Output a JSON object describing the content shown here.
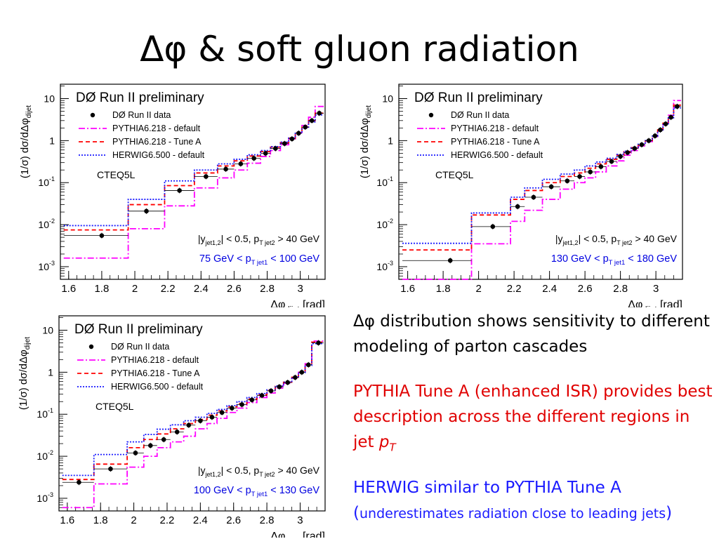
{
  "title": "Δφ & soft gluon radiation",
  "text": {
    "p1_symbol": "Δφ",
    "p1_rest": " distribution shows sensitivity to different modeling of parton cascades",
    "p2_a": "PYTHIA Tune A (enhanced ISR) provides best description across the different regions in jet ",
    "p2_p": "p",
    "p2_sub": "T",
    "p3_a": "HERWIG similar to PYTHIA Tune A",
    "p3_open": "(",
    "p3_b": "underestimates radiation close to leading jets",
    "p3_close": ")"
  },
  "colors": {
    "data": "#000000",
    "pythia_default": "#ff00ff",
    "pythia_tuneA": "#ff0000",
    "herwig": "#1a1aff",
    "cut_text": "#0000e0"
  },
  "chart_data": [
    {
      "type": "scatter",
      "header": "DØ Run II preliminary",
      "ylabel": "(1/σ) dσ/dΔφ",
      "ylabel_sub": "dijet",
      "xlabel": "Δφ",
      "xlabel_sub": "dijet",
      "xlabel_unit": "[rad]",
      "xlim": [
        1.55,
        3.15
      ],
      "ylim": [
        0.0005,
        22
      ],
      "yscale": "log",
      "xticks": [
        "1.6",
        "1.8",
        "2",
        "2.2",
        "2.4",
        "2.6",
        "2.8",
        "3"
      ],
      "yticks": [
        {
          "base": "10",
          "exp": "-3",
          "v": 0.001
        },
        {
          "base": "10",
          "exp": "-2",
          "v": 0.01
        },
        {
          "base": "10",
          "exp": "-1",
          "v": 0.1
        },
        {
          "base": "1",
          "exp": "",
          "v": 1
        },
        {
          "base": "10",
          "exp": "",
          "v": 10
        }
      ],
      "legend_position": "top-left",
      "legend": [
        {
          "label": "DØ  Run II data",
          "style": "marker"
        },
        {
          "label": "PYTHIA6.218 - default",
          "style": "dashdot"
        },
        {
          "label": "PYTHIA6.218 - Tune A",
          "style": "dashed"
        },
        {
          "label": "HERWIG6.500 - default",
          "style": "dotted"
        }
      ],
      "pdf_label": "CTEQ5L",
      "cut1": {
        "a": "|y",
        "a_sub": "jet1,2",
        "b": "| < 0.5, p",
        "b_sub": "T jet2",
        "c": " > 40 GeV"
      },
      "cut2": {
        "a": "75 GeV < p",
        "a_sub": "T jet1",
        "b": " < 100 GeV"
      },
      "bins": [
        1.57,
        1.96,
        2.18,
        2.36,
        2.5,
        2.6,
        2.68,
        2.76,
        2.82,
        2.88,
        2.93,
        2.97,
        3.01,
        3.05,
        3.09,
        3.1416
      ],
      "data": {
        "x": [
          1.8,
          2.07,
          2.27,
          2.43,
          2.55,
          2.64,
          2.72,
          2.79,
          2.85,
          2.905,
          2.95,
          2.99,
          3.03,
          3.07,
          3.115
        ],
        "y": [
          0.0055,
          0.021,
          0.065,
          0.14,
          0.21,
          0.28,
          0.38,
          0.5,
          0.65,
          0.85,
          1.1,
          1.5,
          2.1,
          3.0,
          4.5
        ]
      },
      "series": [
        {
          "key": "pythia_default",
          "values": [
            0.0016,
            0.008,
            0.028,
            0.075,
            0.13,
            0.2,
            0.29,
            0.42,
            0.58,
            0.8,
            1.1,
            1.55,
            2.3,
            3.6,
            6.5
          ]
        },
        {
          "key": "pythia_tuneA",
          "values": [
            0.0075,
            0.03,
            0.085,
            0.17,
            0.25,
            0.33,
            0.43,
            0.55,
            0.7,
            0.9,
            1.15,
            1.55,
            2.1,
            3.0,
            4.5
          ]
        },
        {
          "key": "herwig",
          "values": [
            0.0095,
            0.04,
            0.11,
            0.2,
            0.28,
            0.36,
            0.46,
            0.58,
            0.72,
            0.92,
            1.15,
            1.5,
            2.0,
            2.8,
            4.1
          ]
        }
      ]
    },
    {
      "type": "scatter",
      "header": "DØ Run II preliminary",
      "ylabel": "(1/σ) dσ/dΔφ",
      "ylabel_sub": "dijet",
      "xlabel": "Δφ",
      "xlabel_sub": "dijet",
      "xlabel_unit": "[rad]",
      "xlim": [
        1.55,
        3.15
      ],
      "ylim": [
        0.0005,
        22
      ],
      "yscale": "log",
      "xticks": [
        "1.6",
        "1.8",
        "2",
        "2.2",
        "2.4",
        "2.6",
        "2.8",
        "3"
      ],
      "yticks": [
        {
          "base": "10",
          "exp": "-3",
          "v": 0.001
        },
        {
          "base": "10",
          "exp": "-2",
          "v": 0.01
        },
        {
          "base": "10",
          "exp": "-1",
          "v": 0.1
        },
        {
          "base": "1",
          "exp": "",
          "v": 1
        },
        {
          "base": "10",
          "exp": "",
          "v": 10
        }
      ],
      "legend_position": "top-left",
      "legend": [
        {
          "label": "DØ  Run II data",
          "style": "marker"
        },
        {
          "label": "PYTHIA6.218 - default",
          "style": "dashdot"
        },
        {
          "label": "PYTHIA6.218 - Tune A",
          "style": "dashed"
        },
        {
          "label": "HERWIG6.500 - default",
          "style": "dotted"
        }
      ],
      "pdf_label": "CTEQ5L",
      "cut1": {
        "a": "|y",
        "a_sub": "jet1,2",
        "b": "| < 0.5, p",
        "b_sub": "T jet2",
        "c": " > 40 GeV"
      },
      "cut2": {
        "a": "130 GeV < p",
        "a_sub": "T jet1",
        "b": " < 180 GeV"
      },
      "bins": [
        1.57,
        1.96,
        2.18,
        2.26,
        2.36,
        2.46,
        2.54,
        2.6,
        2.66,
        2.72,
        2.78,
        2.82,
        2.86,
        2.9,
        2.94,
        2.98,
        3.01,
        3.04,
        3.07,
        3.1,
        3.1416
      ],
      "data": {
        "x": [
          1.84,
          2.08,
          2.22,
          2.31,
          2.41,
          2.5,
          2.57,
          2.63,
          2.69,
          2.75,
          2.8,
          2.84,
          2.88,
          2.92,
          2.96,
          2.995,
          3.025,
          3.055,
          3.085,
          3.12
        ],
        "y": [
          0.0014,
          0.009,
          0.027,
          0.045,
          0.08,
          0.11,
          0.14,
          0.18,
          0.24,
          0.32,
          0.42,
          0.52,
          0.65,
          0.8,
          1.0,
          1.3,
          1.8,
          2.5,
          3.6,
          6.5
        ]
      },
      "series": [
        {
          "key": "pythia_default",
          "values": [
            0.0005,
            0.0035,
            0.012,
            0.022,
            0.04,
            0.07,
            0.1,
            0.13,
            0.18,
            0.25,
            0.33,
            0.45,
            0.58,
            0.75,
            0.95,
            1.25,
            1.8,
            2.6,
            4.0,
            9.0
          ]
        },
        {
          "key": "pythia_tuneA",
          "values": [
            0.0025,
            0.017,
            0.04,
            0.065,
            0.1,
            0.14,
            0.17,
            0.22,
            0.28,
            0.36,
            0.45,
            0.55,
            0.68,
            0.82,
            1.0,
            1.3,
            1.8,
            2.6,
            3.8,
            7.0
          ]
        },
        {
          "key": "herwig",
          "values": [
            0.0036,
            0.019,
            0.045,
            0.075,
            0.12,
            0.16,
            0.2,
            0.25,
            0.31,
            0.38,
            0.47,
            0.56,
            0.68,
            0.82,
            1.0,
            1.28,
            1.7,
            2.4,
            3.5,
            6.0
          ]
        }
      ]
    },
    {
      "type": "scatter",
      "header": "DØ Run II preliminary",
      "ylabel": "(1/σ) dσ/dΔφ",
      "ylabel_sub": "dijet",
      "xlabel": "Δφ",
      "xlabel_sub": "dijet",
      "xlabel_unit": "[rad]",
      "xlim": [
        1.55,
        3.15
      ],
      "ylim": [
        0.0005,
        22
      ],
      "yscale": "log",
      "xticks": [
        "1.6",
        "1.8",
        "2",
        "2.2",
        "2.4",
        "2.6",
        "2.8",
        "3"
      ],
      "yticks": [
        {
          "base": "10",
          "exp": "-3",
          "v": 0.001
        },
        {
          "base": "10",
          "exp": "-2",
          "v": 0.01
        },
        {
          "base": "10",
          "exp": "-1",
          "v": 0.1
        },
        {
          "base": "1",
          "exp": "",
          "v": 1
        },
        {
          "base": "10",
          "exp": "",
          "v": 10
        }
      ],
      "legend_position": "top-left",
      "legend": [
        {
          "label": "DØ  Run II data",
          "style": "marker"
        },
        {
          "label": "PYTHIA6.218 - default",
          "style": "dashdot"
        },
        {
          "label": "PYTHIA6.218 - Tune A",
          "style": "dashed"
        },
        {
          "label": "HERWIG6.500 - default",
          "style": "dotted"
        }
      ],
      "pdf_label": "CTEQ5L",
      "cut1": {
        "a": "|y",
        "a_sub": "jet1,2",
        "b": "| < 0.5, p",
        "b_sub": "T jet2",
        "c": " > 40 GeV"
      },
      "cut2": {
        "a": "100 GeV < p",
        "a_sub": "T jet1",
        "b": " < 130 GeV"
      },
      "bins": [
        1.57,
        1.76,
        1.96,
        2.06,
        2.14,
        2.22,
        2.3,
        2.37,
        2.44,
        2.5,
        2.56,
        2.62,
        2.68,
        2.74,
        2.8,
        2.85,
        2.9,
        2.95,
        2.99,
        3.03,
        3.07,
        3.1416
      ],
      "data": {
        "x": [
          1.67,
          1.86,
          2.01,
          2.1,
          2.18,
          2.26,
          2.33,
          2.4,
          2.47,
          2.53,
          2.59,
          2.65,
          2.71,
          2.77,
          2.825,
          2.875,
          2.925,
          2.97,
          3.01,
          3.05,
          3.11
        ],
        "y": [
          0.0024,
          0.005,
          0.012,
          0.018,
          0.025,
          0.038,
          0.055,
          0.07,
          0.085,
          0.11,
          0.14,
          0.17,
          0.22,
          0.28,
          0.36,
          0.45,
          0.57,
          0.75,
          1.0,
          1.5,
          5.0
        ]
      },
      "series": [
        {
          "key": "pythia_default",
          "values": [
            0.0006,
            0.0022,
            0.0055,
            0.01,
            0.016,
            0.022,
            0.03,
            0.045,
            0.06,
            0.08,
            0.11,
            0.14,
            0.19,
            0.25,
            0.32,
            0.42,
            0.55,
            0.72,
            1.0,
            1.6,
            5.5
          ]
        },
        {
          "key": "pythia_tuneA",
          "values": [
            0.0028,
            0.0065,
            0.016,
            0.025,
            0.034,
            0.045,
            0.06,
            0.075,
            0.095,
            0.12,
            0.15,
            0.18,
            0.23,
            0.29,
            0.37,
            0.46,
            0.58,
            0.76,
            1.0,
            1.5,
            5.2
          ]
        },
        {
          "key": "herwig",
          "values": [
            0.0035,
            0.011,
            0.022,
            0.033,
            0.044,
            0.056,
            0.07,
            0.085,
            0.105,
            0.13,
            0.16,
            0.2,
            0.25,
            0.31,
            0.38,
            0.47,
            0.58,
            0.75,
            0.98,
            1.45,
            4.8
          ]
        }
      ]
    }
  ]
}
